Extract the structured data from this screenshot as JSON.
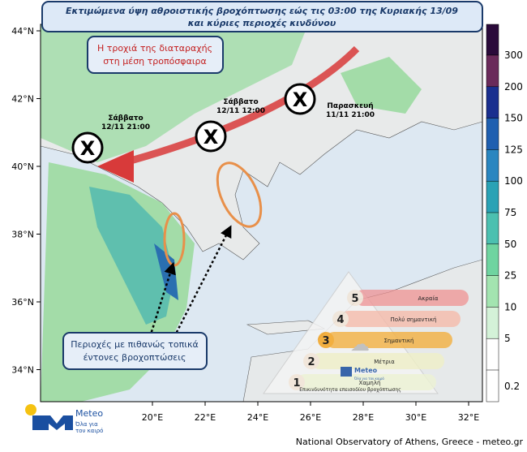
{
  "header": {
    "title_line1": "Εκτιμώμενα ύψη αθροιστικής βροχόπτωσης εώς τις 03:00 της Κυριακής 13/09",
    "title_line2": "και κύριες περιοχές κινδύνου"
  },
  "annotations": {
    "trajectory": [
      "Η τροχιά της διαταραχής",
      "στη μέση τροπόσφαιρα"
    ],
    "areas": [
      "Περιοχές με πιθανώς τοπικά",
      "έντονες βροχοπτώσεις"
    ]
  },
  "positions": [
    {
      "day": "Σάββατο",
      "time": "12/11 21:00"
    },
    {
      "day": "Σάββατο",
      "time": "12/11 12:00"
    },
    {
      "day": "Παρασκευή",
      "time": "11/11 21:00"
    }
  ],
  "lat_labels": [
    "44°N",
    "42°N",
    "40°N",
    "38°N",
    "36°N",
    "34°N"
  ],
  "lon_labels": [
    "20°E",
    "22°E",
    "24°E",
    "26°E",
    "28°E",
    "30°E",
    "32°E"
  ],
  "colorbar_labels": [
    "300",
    "200",
    "150",
    "125",
    "100",
    "75",
    "50",
    "25",
    "10",
    "5",
    "0.2"
  ],
  "risk_scale": {
    "levels": [
      {
        "num": "5",
        "label": "Ακραία"
      },
      {
        "num": "4",
        "label": "Πολύ σημαντική"
      },
      {
        "num": "3",
        "label": "Σημαντική"
      },
      {
        "num": "2",
        "label": "Μέτρια"
      },
      {
        "num": "1",
        "label": "Χαμηλή"
      }
    ],
    "logo": "Meteo",
    "logo_tag": "Όλα για τον καιρό",
    "caption": "Επικινδυνότητα επεισοδίου βροχόπτωσης"
  },
  "logo": {
    "name": "Meteo",
    "tagline": [
      "Όλα για",
      "τον καιρό"
    ]
  },
  "footer": "National Observatory of Athens, Greece - meteo.gr"
}
